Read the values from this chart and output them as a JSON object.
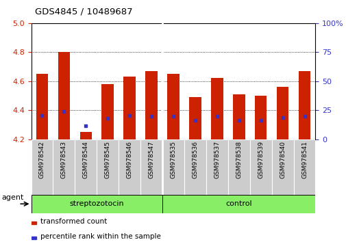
{
  "title": "GDS4845 / 10489687",
  "samples": [
    "GSM978542",
    "GSM978543",
    "GSM978544",
    "GSM978545",
    "GSM978546",
    "GSM978547",
    "GSM978535",
    "GSM978536",
    "GSM978537",
    "GSM978538",
    "GSM978539",
    "GSM978540",
    "GSM978541"
  ],
  "bar_values": [
    4.65,
    4.8,
    4.25,
    4.58,
    4.63,
    4.67,
    4.65,
    4.49,
    4.62,
    4.51,
    4.5,
    4.56,
    4.67
  ],
  "blue_positions": [
    4.365,
    4.39,
    4.29,
    4.345,
    4.365,
    4.36,
    4.36,
    4.33,
    4.36,
    4.33,
    4.33,
    4.35,
    4.36
  ],
  "bar_bottom": 4.2,
  "ylim_left": [
    4.2,
    5.0
  ],
  "ylim_right": [
    0,
    100
  ],
  "left_yticks": [
    4.2,
    4.4,
    4.6,
    4.8,
    5.0
  ],
  "right_yticks": [
    0,
    25,
    50,
    75,
    100
  ],
  "right_ytick_labels": [
    "0",
    "25",
    "50",
    "75",
    "100%"
  ],
  "bar_color": "#cc2200",
  "blue_color": "#3333cc",
  "group1_label": "streptozotocin",
  "group2_label": "control",
  "group1_indices": [
    0,
    1,
    2,
    3,
    4,
    5
  ],
  "group2_indices": [
    6,
    7,
    8,
    9,
    10,
    11,
    12
  ],
  "group_bg_color": "#88ee66",
  "tick_area_color": "#cccccc",
  "legend_red_label": "transformed count",
  "legend_blue_label": "percentile rank within the sample",
  "agent_label": "agent",
  "bar_width": 0.55,
  "separator_after": 5
}
